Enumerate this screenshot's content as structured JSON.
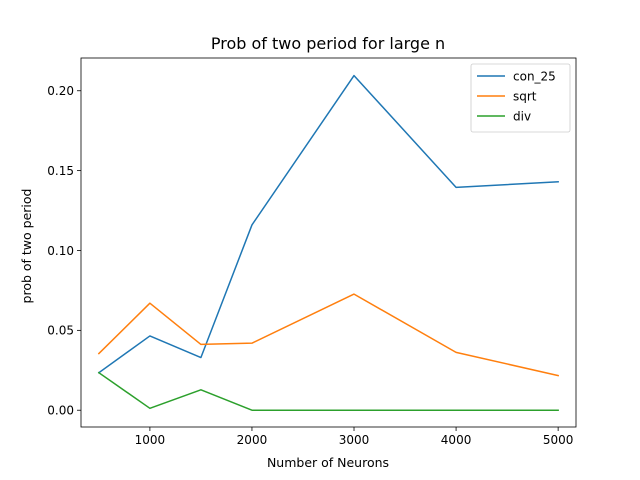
{
  "chart_data": {
    "type": "line",
    "title": "Prob of two period for large n",
    "xlabel": "Number of Neurons",
    "ylabel": "prob of two period",
    "x": [
      500,
      1000,
      1500,
      2000,
      3000,
      4000,
      5000
    ],
    "xlim": [
      325,
      5175
    ],
    "ylim": [
      -0.0105,
      0.2205
    ],
    "xticks": [
      1000,
      2000,
      3000,
      4000,
      5000
    ],
    "yticks": [
      0.0,
      0.05,
      0.1,
      0.15,
      0.2
    ],
    "xtick_labels": [
      "1000",
      "2000",
      "3000",
      "4000",
      "5000"
    ],
    "ytick_labels": [
      "0.00",
      "0.05",
      "0.10",
      "0.15",
      "0.20"
    ],
    "grid": false,
    "legend_position": "top-right",
    "series": [
      {
        "name": "con_25",
        "color": "#1f77b4",
        "values": [
          0.0235,
          0.0465,
          0.033,
          0.116,
          0.2095,
          0.1395,
          0.143
        ]
      },
      {
        "name": "sqrt",
        "color": "#ff7f0e",
        "values": [
          0.0355,
          0.067,
          0.0412,
          0.042,
          0.0727,
          0.0362,
          0.0217
        ]
      },
      {
        "name": "div",
        "color": "#2ca02c",
        "values": [
          0.0235,
          0.0012,
          0.0128,
          0.0,
          0.0,
          0.0,
          0.0
        ]
      }
    ]
  }
}
